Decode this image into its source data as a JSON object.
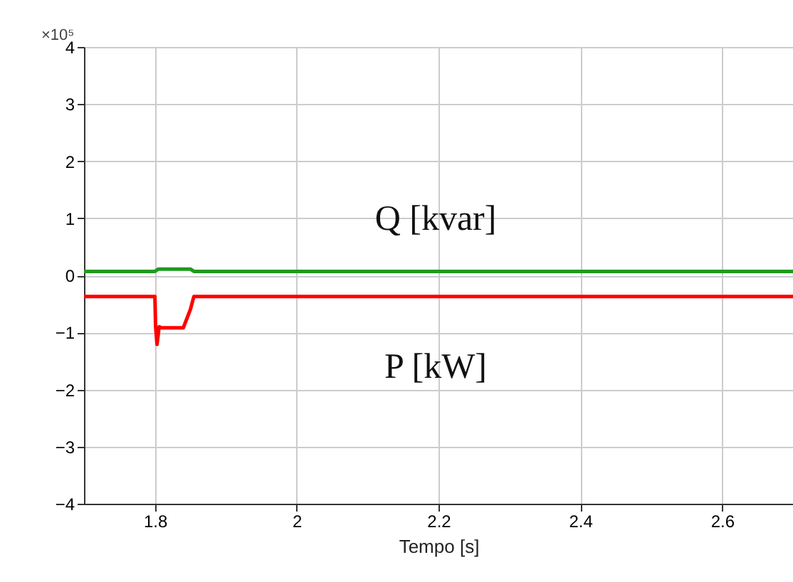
{
  "chart_data": {
    "type": "line",
    "xlabel": "Tempo [s]",
    "annotations": [
      "×10⁵"
    ],
    "xlim": [
      1.7,
      2.7
    ],
    "xticks": [
      1.8,
      2,
      2.2,
      2.4,
      2.6
    ],
    "ylim": [
      -4,
      4
    ],
    "yticks": [
      -4,
      -3,
      -2,
      -1,
      0,
      1,
      2,
      3,
      4
    ],
    "grid": true,
    "legend": false,
    "marker": "none",
    "line_style": "solid",
    "series": [
      {
        "name": "Q [kvar]",
        "color": "#1f9a1f",
        "x": [
          1.7,
          1.8,
          1.805,
          1.85,
          1.855,
          2.7
        ],
        "values": [
          0.07,
          0.07,
          0.11,
          0.11,
          0.07,
          0.07
        ]
      },
      {
        "name": "P [kW]",
        "color": "#ff0000",
        "x": [
          1.7,
          1.8,
          1.801,
          1.803,
          1.806,
          1.81,
          1.84,
          1.85,
          1.855,
          2.7
        ],
        "values": [
          -0.37,
          -0.37,
          -0.9,
          -1.21,
          -0.9,
          -0.92,
          -0.92,
          -0.6,
          -0.37,
          -0.37
        ]
      }
    ]
  }
}
